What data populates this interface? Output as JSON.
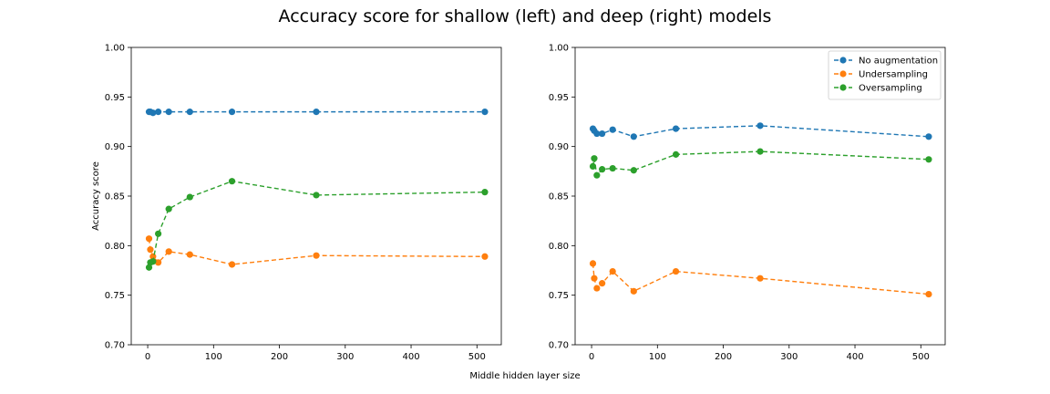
{
  "suptitle": "Accuracy score for shallow (left) and deep (right) models",
  "shared_xlabel": "Middle hidden layer size",
  "colors": {
    "No augmentation": "#1f77b4",
    "Undersampling": "#ff7f0e",
    "Oversampling": "#2ca02c"
  },
  "chart_data": [
    {
      "type": "line",
      "title": "shallow",
      "xlabel": "Middle hidden layer size",
      "ylabel": "Accuracy score",
      "xlim": [
        -25,
        537
      ],
      "ylim": [
        0.7,
        1.0
      ],
      "xticks": [
        0,
        100,
        200,
        300,
        400,
        500
      ],
      "yticks": [
        0.7,
        0.75,
        0.8,
        0.85,
        0.9,
        0.95,
        1.0
      ],
      "x": [
        2,
        4,
        8,
        16,
        32,
        64,
        128,
        256,
        512
      ],
      "series": [
        {
          "name": "No augmentation",
          "values": [
            0.935,
            0.935,
            0.934,
            0.935,
            0.935,
            0.935,
            0.935,
            0.935,
            0.935
          ]
        },
        {
          "name": "Undersampling",
          "values": [
            0.807,
            0.796,
            0.789,
            0.783,
            0.794,
            0.791,
            0.781,
            0.79,
            0.789
          ]
        },
        {
          "name": "Oversampling",
          "values": [
            0.778,
            0.783,
            0.784,
            0.812,
            0.837,
            0.849,
            0.865,
            0.851,
            0.854
          ]
        }
      ]
    },
    {
      "type": "line",
      "title": "deep",
      "xlabel": "Middle hidden layer size",
      "ylabel": "",
      "xlim": [
        -25,
        537
      ],
      "ylim": [
        0.7,
        1.0
      ],
      "xticks": [
        0,
        100,
        200,
        300,
        400,
        500
      ],
      "yticks": [
        0.7,
        0.75,
        0.8,
        0.85,
        0.9,
        0.95,
        1.0
      ],
      "legend": "top-right",
      "legend_entries": [
        "No augmentation",
        "Undersampling",
        "Oversampling"
      ],
      "x": [
        2,
        4,
        8,
        16,
        32,
        64,
        128,
        256,
        512
      ],
      "series": [
        {
          "name": "No augmentation",
          "values": [
            0.918,
            0.916,
            0.913,
            0.913,
            0.917,
            0.91,
            0.918,
            0.921,
            0.91
          ]
        },
        {
          "name": "Undersampling",
          "values": [
            0.782,
            0.767,
            0.757,
            0.762,
            0.774,
            0.754,
            0.774,
            0.767,
            0.751
          ]
        },
        {
          "name": "Oversampling",
          "values": [
            0.88,
            0.888,
            0.871,
            0.877,
            0.878,
            0.876,
            0.892,
            0.895,
            0.887
          ]
        }
      ]
    }
  ]
}
